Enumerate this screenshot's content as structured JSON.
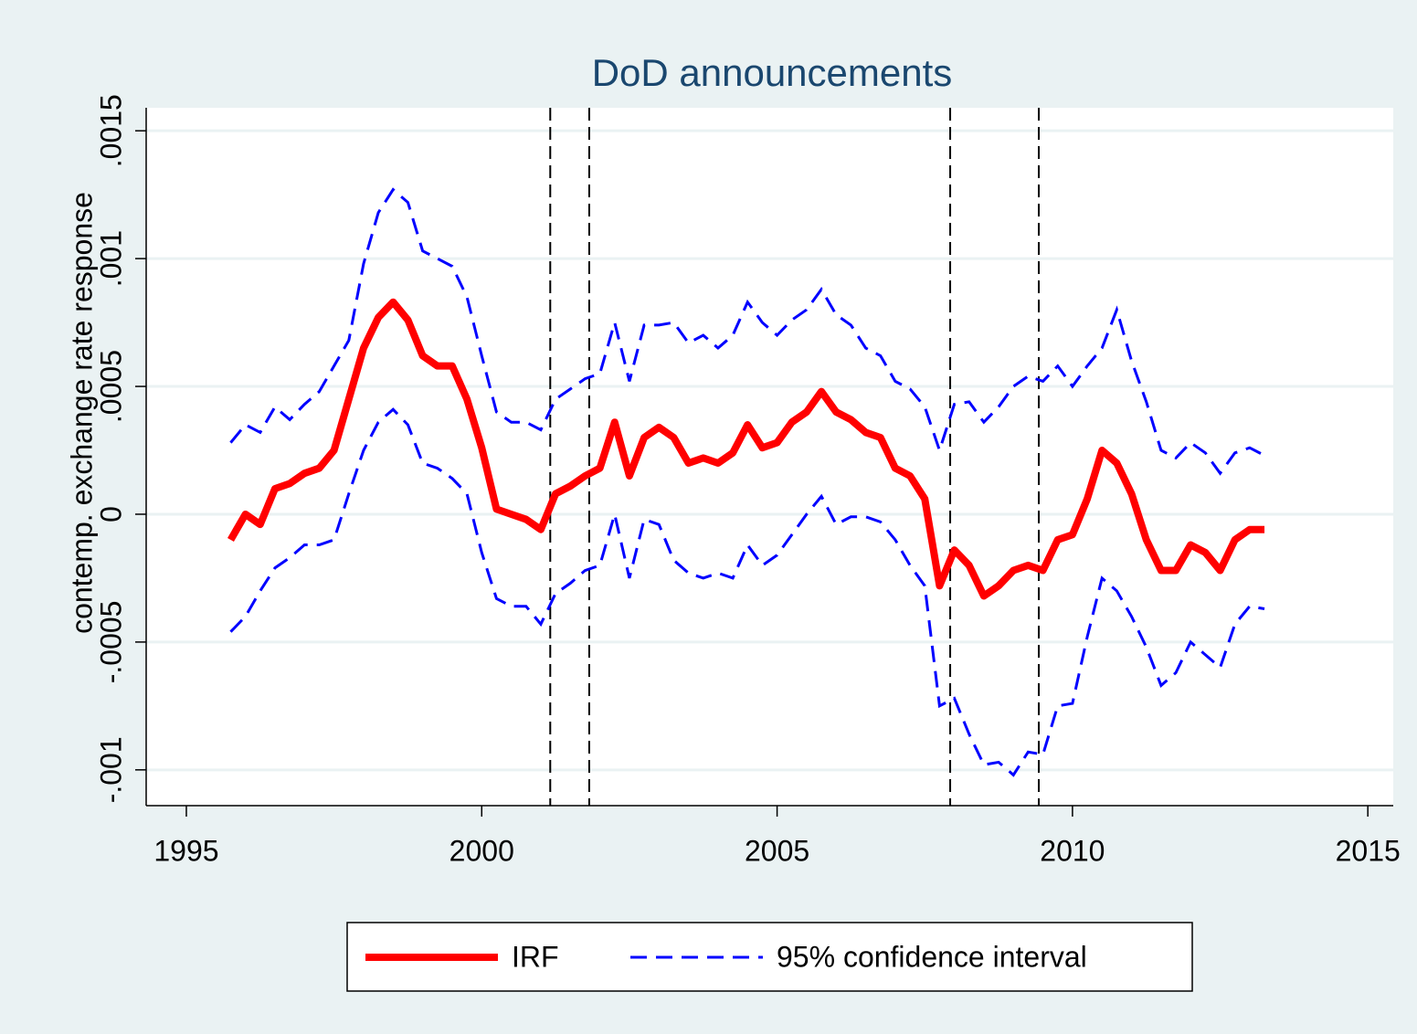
{
  "chart_data": {
    "type": "line",
    "title": "DoD announcements",
    "y_label": "contemp. exchange rate response",
    "xlim": [
      1994.32,
      2015.43
    ],
    "xticks": [
      1995,
      2000,
      2005,
      2010,
      2015
    ],
    "ylim": [
      -0.00114,
      0.00159
    ],
    "yticks": [
      {
        "value": -0.001,
        "label": "-.001"
      },
      {
        "value": -0.0005,
        "label": "-.0005"
      },
      0,
      {
        "value": 0.0005,
        "label": ".0005"
      },
      {
        "value": 0.001,
        "label": ".001"
      },
      {
        "value": 0.0015,
        "label": ".0015"
      }
    ],
    "grid": true,
    "legend": "bottom",
    "vlines": [
      2001.16,
      2001.82,
      2007.93,
      2009.43
    ],
    "x": [
      1995.75,
      1996.0,
      1996.25,
      1996.5,
      1996.75,
      1997.0,
      1997.25,
      1997.5,
      1997.75,
      1998.0,
      1998.25,
      1998.5,
      1998.75,
      1999.0,
      1999.25,
      1999.5,
      1999.75,
      2000.0,
      2000.25,
      2000.5,
      2000.75,
      2001.0,
      2001.25,
      2001.5,
      2001.75,
      2002.0,
      2002.25,
      2002.5,
      2002.75,
      2003.0,
      2003.25,
      2003.5,
      2003.75,
      2004.0,
      2004.25,
      2004.5,
      2004.75,
      2005.0,
      2005.25,
      2005.5,
      2005.75,
      2006.0,
      2006.25,
      2006.5,
      2006.75,
      2007.0,
      2007.25,
      2007.5,
      2007.75,
      2008.0,
      2008.25,
      2008.5,
      2008.75,
      2009.0,
      2009.25,
      2009.5,
      2009.75,
      2010.0,
      2010.25,
      2010.5,
      2010.75,
      2011.0,
      2011.25,
      2011.5,
      2011.75,
      2012.0,
      2012.25,
      2012.5,
      2012.75,
      2013.0,
      2013.25
    ],
    "series": [
      {
        "name": "IRF",
        "color": "#ff0000",
        "values": [
          -0.0001,
          0.0,
          -4e-05,
          0.0001,
          0.00012,
          0.00016,
          0.00018,
          0.00025,
          0.00045,
          0.00065,
          0.00077,
          0.00083,
          0.00076,
          0.00062,
          0.00058,
          0.00058,
          0.00045,
          0.00026,
          2e-05,
          0.0,
          -2e-05,
          -6e-05,
          8e-05,
          0.00011,
          0.00015,
          0.00018,
          0.00036,
          0.00015,
          0.0003,
          0.00034,
          0.0003,
          0.0002,
          0.00022,
          0.0002,
          0.00024,
          0.00035,
          0.00026,
          0.00028,
          0.00036,
          0.0004,
          0.00048,
          0.0004,
          0.00037,
          0.00032,
          0.0003,
          0.00018,
          0.00015,
          6e-05,
          -0.00028,
          -0.00014,
          -0.0002,
          -0.00032,
          -0.00028,
          -0.00022,
          -0.0002,
          -0.00022,
          -0.0001,
          -8e-05,
          6e-05,
          0.00025,
          0.0002,
          8e-05,
          -0.0001,
          -0.00022,
          -0.00022,
          -0.00012,
          -0.00015,
          -0.00022,
          -0.0001,
          -6e-05,
          -6e-05
        ]
      },
      {
        "name": "95% confidence interval",
        "color": "#0000ff",
        "upper": [
          0.00028,
          0.00035,
          0.00032,
          0.00042,
          0.00037,
          0.00043,
          0.00048,
          0.00058,
          0.00068,
          0.00098,
          0.00118,
          0.00127,
          0.00122,
          0.00103,
          0.001,
          0.00097,
          0.00085,
          0.00062,
          0.0004,
          0.00036,
          0.00036,
          0.00033,
          0.00045,
          0.00049,
          0.00053,
          0.00055,
          0.00075,
          0.00052,
          0.00074,
          0.00074,
          0.00075,
          0.00067,
          0.0007,
          0.00065,
          0.0007,
          0.00083,
          0.00075,
          0.0007,
          0.00076,
          0.0008,
          0.00088,
          0.00078,
          0.00074,
          0.00065,
          0.00062,
          0.00052,
          0.00049,
          0.00042,
          0.00025,
          0.00043,
          0.00044,
          0.00036,
          0.00042,
          0.0005,
          0.00054,
          0.00052,
          0.00058,
          0.0005,
          0.00058,
          0.00065,
          0.0008,
          0.0006,
          0.00044,
          0.00025,
          0.00022,
          0.00028,
          0.00024,
          0.00016,
          0.00024,
          0.00026,
          0.00023
        ],
        "lower": [
          -0.00046,
          -0.0004,
          -0.0003,
          -0.00021,
          -0.00017,
          -0.00012,
          -0.00012,
          -0.0001,
          8e-05,
          0.00025,
          0.00036,
          0.00041,
          0.00035,
          0.0002,
          0.00018,
          0.00014,
          8e-05,
          -0.00015,
          -0.00033,
          -0.00036,
          -0.00036,
          -0.00043,
          -0.00031,
          -0.00027,
          -0.00022,
          -0.0002,
          0.0,
          -0.00025,
          -2e-05,
          -4e-05,
          -0.00018,
          -0.00023,
          -0.00025,
          -0.00023,
          -0.00025,
          -0.00012,
          -0.0002,
          -0.00016,
          -8e-05,
          0.0,
          7e-05,
          -4e-05,
          -1e-05,
          -1e-05,
          -3e-05,
          -0.0001,
          -0.0002,
          -0.00028,
          -0.00075,
          -0.00072,
          -0.00086,
          -0.00098,
          -0.00097,
          -0.00102,
          -0.00093,
          -0.00094,
          -0.00075,
          -0.00074,
          -0.00048,
          -0.00025,
          -0.0003,
          -0.0004,
          -0.00052,
          -0.00067,
          -0.00062,
          -0.0005,
          -0.00055,
          -0.0006,
          -0.00043,
          -0.00036,
          -0.00037
        ]
      }
    ]
  }
}
